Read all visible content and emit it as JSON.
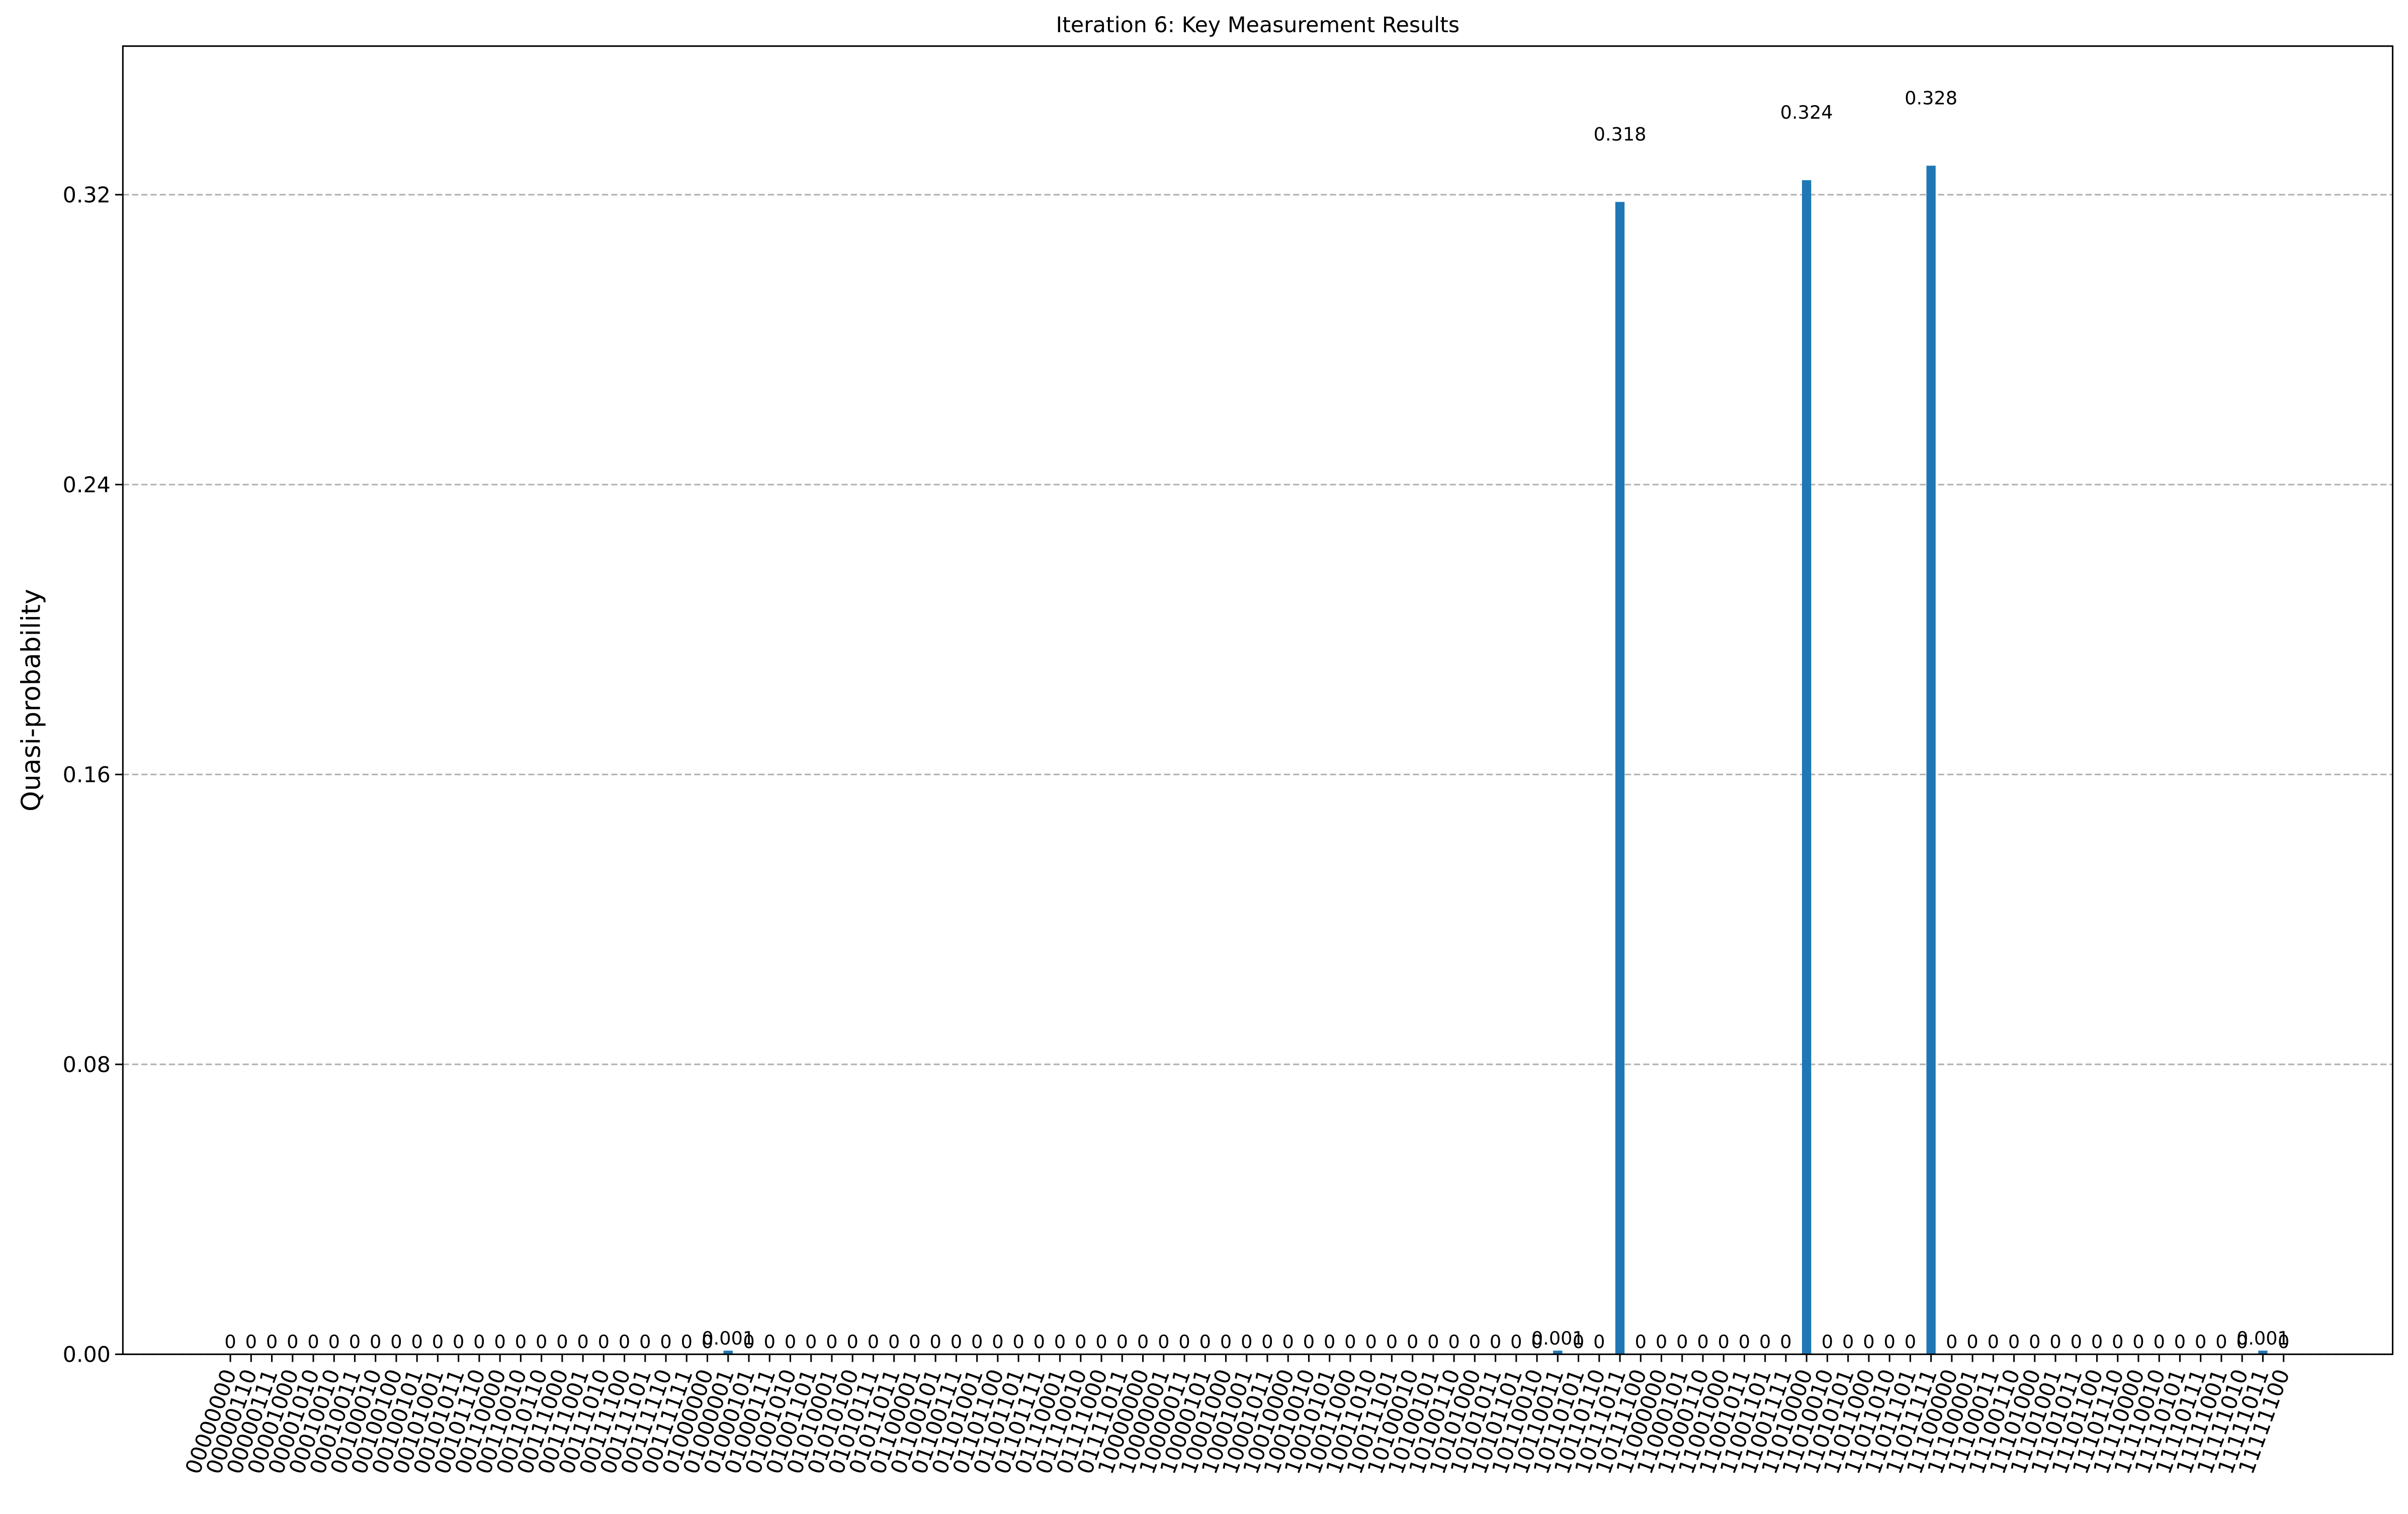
{
  "chart_data": {
    "type": "bar",
    "title": "Iteration 6: Key Measurement Results",
    "ylabel": "Quasi-probability",
    "color": "#1f77b4",
    "grid": true,
    "ylim": [
      0,
      0.361
    ],
    "yticks": [
      {
        "value": 0,
        "label": "0.00"
      },
      {
        "value": 0.08,
        "label": "0.08"
      },
      {
        "value": 0.16,
        "label": "0.16"
      },
      {
        "value": 0.24,
        "label": "0.24"
      },
      {
        "value": 0.32,
        "label": "0.32"
      }
    ],
    "categories": [
      "00000000",
      "00000110",
      "00000111",
      "00001000",
      "00001010",
      "00010010",
      "00010011",
      "00100010",
      "00100100",
      "00100101",
      "00101001",
      "00101011",
      "00101110",
      "00110000",
      "00110010",
      "00110110",
      "00111000",
      "00111001",
      "00111010",
      "00111100",
      "00111101",
      "00111110",
      "00111111",
      "01000000",
      "01000001",
      "01000101",
      "01000111",
      "01001010",
      "01001101",
      "01010001",
      "01010100",
      "01010111",
      "01011011",
      "01100001",
      "01100101",
      "01100111",
      "01101001",
      "01101100",
      "01101101",
      "01101111",
      "01110001",
      "01110010",
      "01111000",
      "01111011",
      "10000000",
      "10000001",
      "10000011",
      "10000101",
      "10001000",
      "10001001",
      "10001011",
      "10010000",
      "10010010",
      "10010101",
      "10011000",
      "10011010",
      "10011101",
      "10100010",
      "10100101",
      "10100110",
      "10101000",
      "10101011",
      "10101101",
      "10110010",
      "10110011",
      "10110101",
      "10110110",
      "10111011",
      "10111100",
      "11000000",
      "11000101",
      "11000110",
      "11001000",
      "11001011",
      "11001101",
      "11001111",
      "11010000",
      "11010010",
      "11010101",
      "11011000",
      "11011010",
      "11011101",
      "11011111",
      "11100000",
      "11100001",
      "11100011",
      "11100110",
      "11101000",
      "11101001",
      "11101011",
      "11101100",
      "11101110",
      "11110000",
      "11110010",
      "11110101",
      "11110111",
      "11111001",
      "11111010",
      "11111011",
      "11111100"
    ],
    "values": [
      0,
      0,
      0,
      0,
      0,
      0,
      0,
      0,
      0,
      0,
      0,
      0,
      0,
      0,
      0,
      0,
      0,
      0,
      0,
      0,
      0,
      0,
      0,
      0,
      0.001,
      0,
      0,
      0,
      0,
      0,
      0,
      0,
      0,
      0,
      0,
      0,
      0,
      0,
      0,
      0,
      0,
      0,
      0,
      0,
      0,
      0,
      0,
      0,
      0,
      0,
      0,
      0,
      0,
      0,
      0,
      0,
      0,
      0,
      0,
      0,
      0,
      0,
      0,
      0,
      0.001,
      0,
      0,
      0.318,
      0,
      0,
      0,
      0,
      0,
      0,
      0,
      0,
      0.324,
      0,
      0,
      0,
      0,
      0,
      0.328,
      0,
      0,
      0,
      0,
      0,
      0,
      0,
      0,
      0,
      0,
      0,
      0,
      0,
      0,
      0,
      0.001,
      0
    ]
  }
}
